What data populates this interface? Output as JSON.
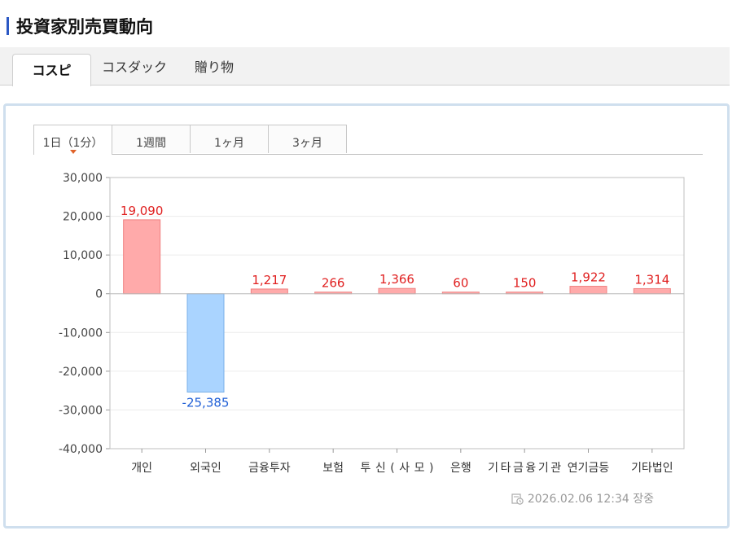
{
  "page": {
    "title": "投資家別売買動向"
  },
  "market_tabs": [
    {
      "label": "コスピ",
      "active": true
    },
    {
      "label": "コスダック",
      "active": false
    },
    {
      "label": "贈り物",
      "active": false
    }
  ],
  "period_tabs": [
    {
      "label": "1日（1分）",
      "active": true
    },
    {
      "label": "1週間",
      "active": false
    },
    {
      "label": "1ヶ月",
      "active": false
    },
    {
      "label": "3ヶ月",
      "active": false
    }
  ],
  "timestamp": "2026.02.06 12:34 장중",
  "colors": {
    "positive_fill": "#ffaaaa",
    "positive_stroke": "#f08080",
    "positive_label": "#e02020",
    "negative_fill": "#aad4ff",
    "negative_stroke": "#7ab0e8",
    "negative_label": "#1f5fd6"
  },
  "chart_data": {
    "type": "bar",
    "categories": [
      "개인",
      "외국인",
      "금융투자",
      "보험",
      "투신(사모)",
      "은행",
      "기타금융기관",
      "연기금등",
      "기타법인"
    ],
    "values": [
      19090,
      -25385,
      1217,
      266,
      1366,
      60,
      150,
      1922,
      1314
    ],
    "value_labels": [
      "19,090",
      "-25,385",
      "1,217",
      "266",
      "1,366",
      "60",
      "150",
      "1,922",
      "1,314"
    ],
    "ylim": [
      -40000,
      30000
    ],
    "yticks": [
      30000,
      20000,
      10000,
      0,
      -10000,
      -20000,
      -30000,
      -40000
    ],
    "ytick_labels": [
      "30,000",
      "20,000",
      "10,000",
      "0",
      "-10,000",
      "-20,000",
      "-30,000",
      "-40,000"
    ],
    "grid": true,
    "legend": "none"
  }
}
